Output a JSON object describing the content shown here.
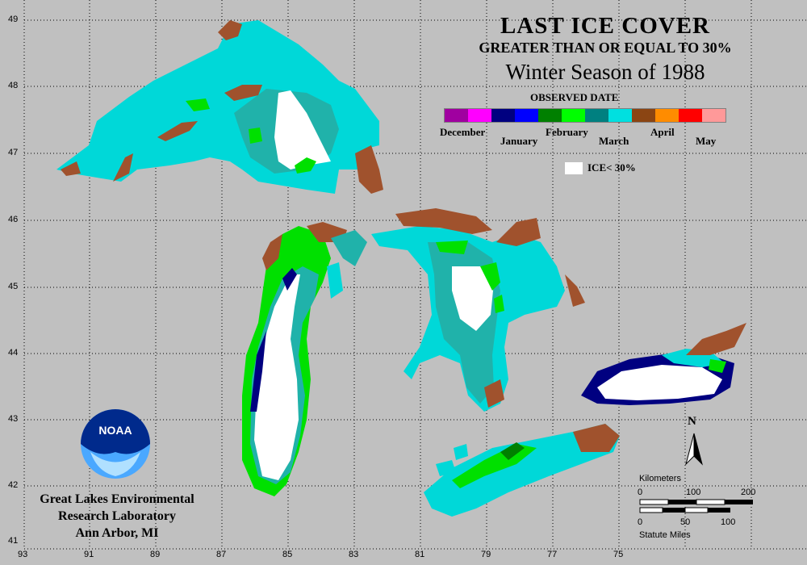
{
  "title": {
    "line1": "LAST ICE COVER",
    "line2": "GREATER THAN OR EQUAL TO 30%",
    "line3": "Winter Season of 1988"
  },
  "legend": {
    "title": "OBSERVED DATE",
    "colors": [
      "#a000a0",
      "#ff00ff",
      "#000080",
      "#0000ff",
      "#008000",
      "#00ff00",
      "#008080",
      "#00e0e0",
      "#8b4513",
      "#ff8c00",
      "#ff0000",
      "#ff9999"
    ],
    "months": [
      "December",
      "January",
      "February",
      "March",
      "April",
      "May"
    ],
    "ice_label": "ICE< 30%"
  },
  "colors": {
    "ocean": "#c0c0c0",
    "land_border": "#000000",
    "march": "#00d8d8",
    "march_dark": "#20b2aa",
    "february": "#00e000",
    "january": "#000080",
    "april": "#a0522d",
    "white": "#ffffff"
  },
  "axes": {
    "longitude": [
      "93",
      "91",
      "89",
      "87",
      "85",
      "83",
      "81",
      "79",
      "77",
      "75"
    ],
    "latitude": [
      "49",
      "48",
      "47",
      "46",
      "45",
      "44",
      "43",
      "42",
      "41"
    ]
  },
  "compass": {
    "label": "N"
  },
  "scale": {
    "km_label": "Kilometers",
    "km_ticks": [
      "0",
      "100",
      "200"
    ],
    "mi_label": "Statute Miles",
    "mi_ticks": [
      "0",
      "50",
      "100"
    ]
  },
  "organization": {
    "line1": "Great Lakes Environmental",
    "line2": "Research Laboratory",
    "line3": "Ann Arbor, MI"
  },
  "logo": {
    "text": "NOAA"
  }
}
